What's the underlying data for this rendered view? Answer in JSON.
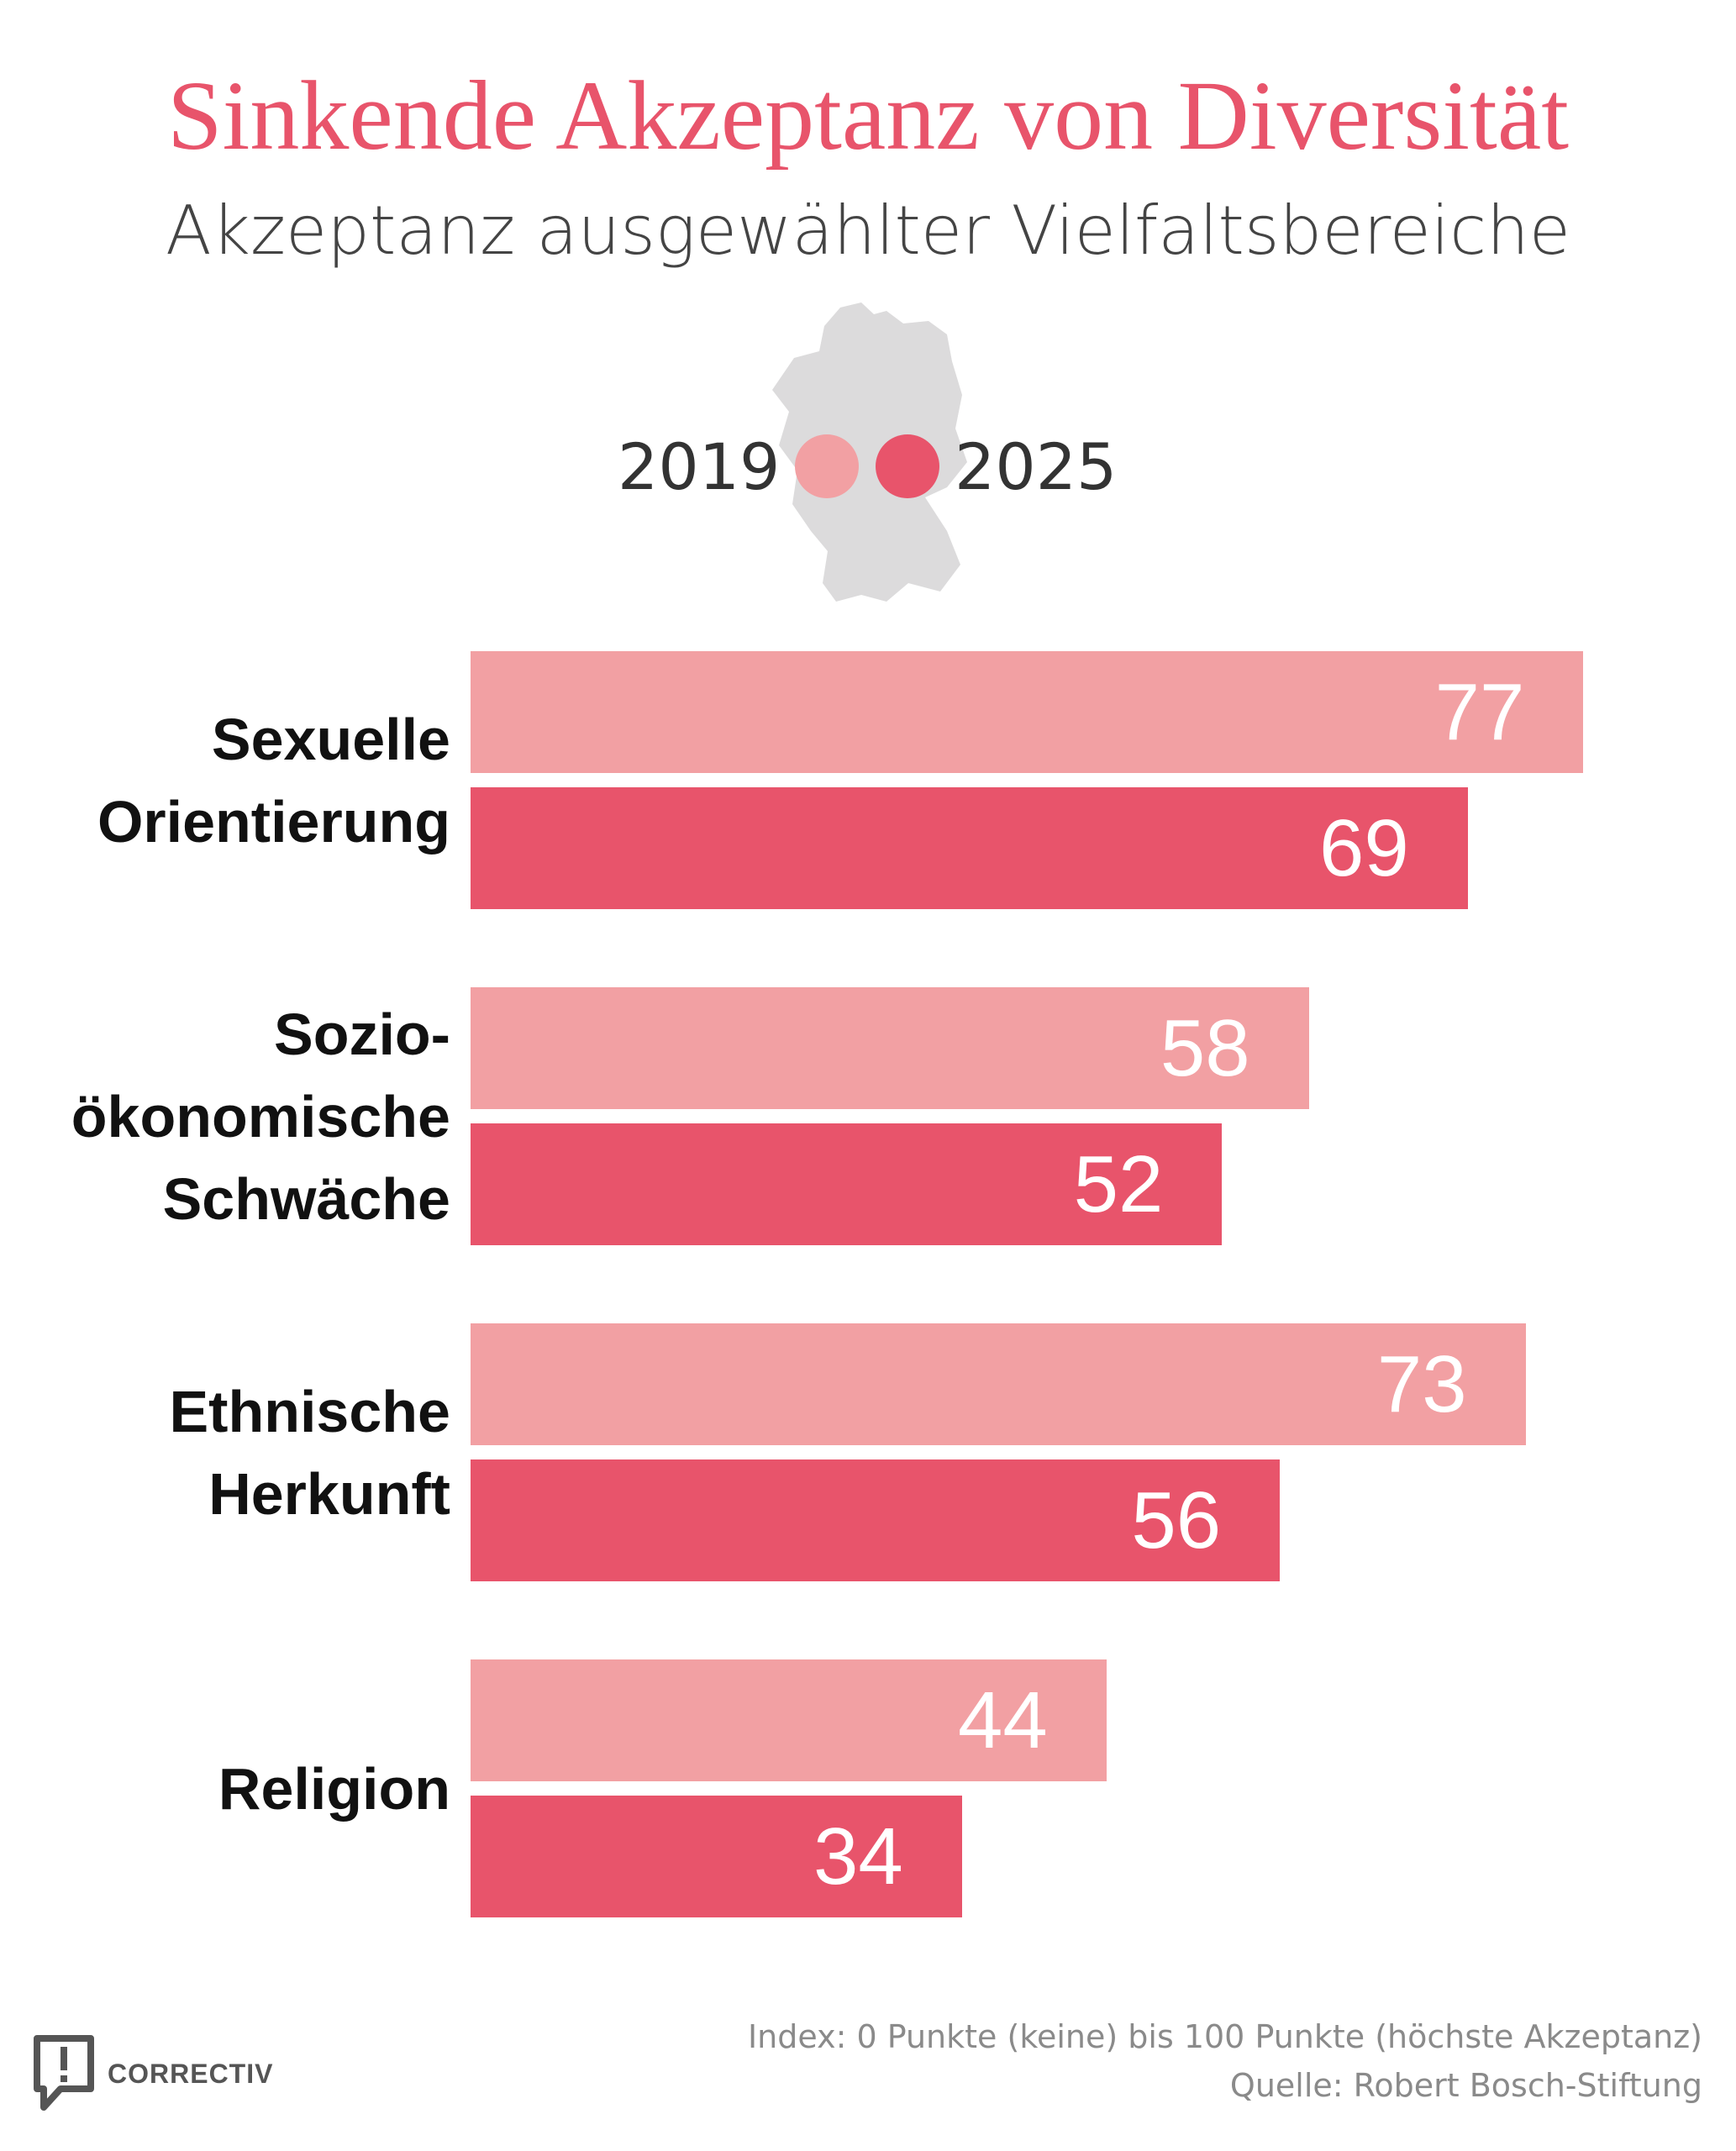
{
  "title": "Sinkende Akzeptanz von Diversität",
  "subtitle": "Akzeptanz ausgewählter Vielfaltsbereiche",
  "legend": {
    "items": [
      {
        "label": "2019",
        "color": "#f2a0a3"
      },
      {
        "label": "2025",
        "color": "#e8546b"
      }
    ]
  },
  "chart_data": {
    "type": "bar",
    "orientation": "horizontal",
    "title": "Sinkende Akzeptanz von Diversität",
    "subtitle": "Akzeptanz ausgewählter Vielfaltsbereiche",
    "categories": [
      {
        "lines": [
          "Sexuelle",
          "Orientierung"
        ]
      },
      {
        "lines": [
          "Sozio-",
          "ökonomische",
          "Schwäche"
        ]
      },
      {
        "lines": [
          "Ethnische",
          "Herkunft"
        ]
      },
      {
        "lines": [
          "Religion"
        ]
      }
    ],
    "series": [
      {
        "name": "2019",
        "color": "#f2a0a3",
        "values": [
          77,
          58,
          73,
          44
        ]
      },
      {
        "name": "2025",
        "color": "#e8546b",
        "values": [
          69,
          52,
          56,
          34
        ]
      }
    ],
    "xlim": [
      0,
      100
    ],
    "grid": false,
    "legend_position": "top-center",
    "value_labels": true
  },
  "footer": {
    "note": "Index: 0 Punkte (keine) bis 100 Punkte (höchste Akzeptanz)",
    "source": "Quelle: Robert Bosch-Stiftung",
    "logo": "CORRECTIV"
  }
}
